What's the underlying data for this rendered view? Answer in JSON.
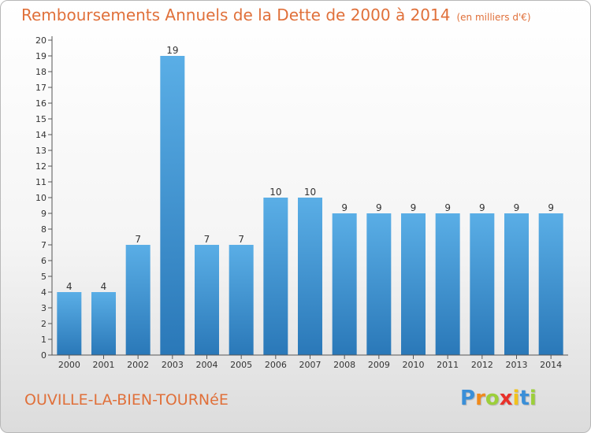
{
  "chart_data": {
    "type": "bar",
    "title": "Remboursements Annuels de la Dette de 2000 à 2014",
    "unit_note": "(en milliers d'€)",
    "categories": [
      "2000",
      "2001",
      "2002",
      "2003",
      "2004",
      "2005",
      "2006",
      "2007",
      "2008",
      "2009",
      "2010",
      "2011",
      "2012",
      "2013",
      "2014"
    ],
    "values": [
      4,
      4,
      7,
      19,
      7,
      7,
      10,
      10,
      9,
      9,
      9,
      9,
      9,
      9,
      9
    ],
    "data_labels": [
      "4",
      "4",
      "7",
      "19",
      "7",
      "7",
      "10",
      "10",
      "9",
      "9",
      "9",
      "9",
      "9",
      "9",
      "9"
    ],
    "ylim": [
      0,
      20
    ],
    "yticks": [
      0,
      1,
      2,
      3,
      4,
      5,
      6,
      7,
      8,
      9,
      10,
      11,
      12,
      13,
      14,
      15,
      16,
      17,
      18,
      19,
      20
    ],
    "xlabel": "",
    "ylabel": "",
    "grid": false,
    "bar_color_top": "#5aaee6",
    "bar_color_bottom": "#2a78b8"
  },
  "footer": {
    "city": "OUVILLE-LA-BIEN-TOURNéE"
  },
  "brand": {
    "letters": [
      "P",
      "r",
      "o",
      "x",
      "i",
      "t",
      "i"
    ],
    "colors": [
      "#3a8fd8",
      "#f08a1c",
      "#9ccf3a",
      "#e8312a",
      "#f2c21a",
      "#3a8fd8",
      "#9ccf3a"
    ]
  },
  "colors": {
    "accent_text": "#e0703a"
  }
}
